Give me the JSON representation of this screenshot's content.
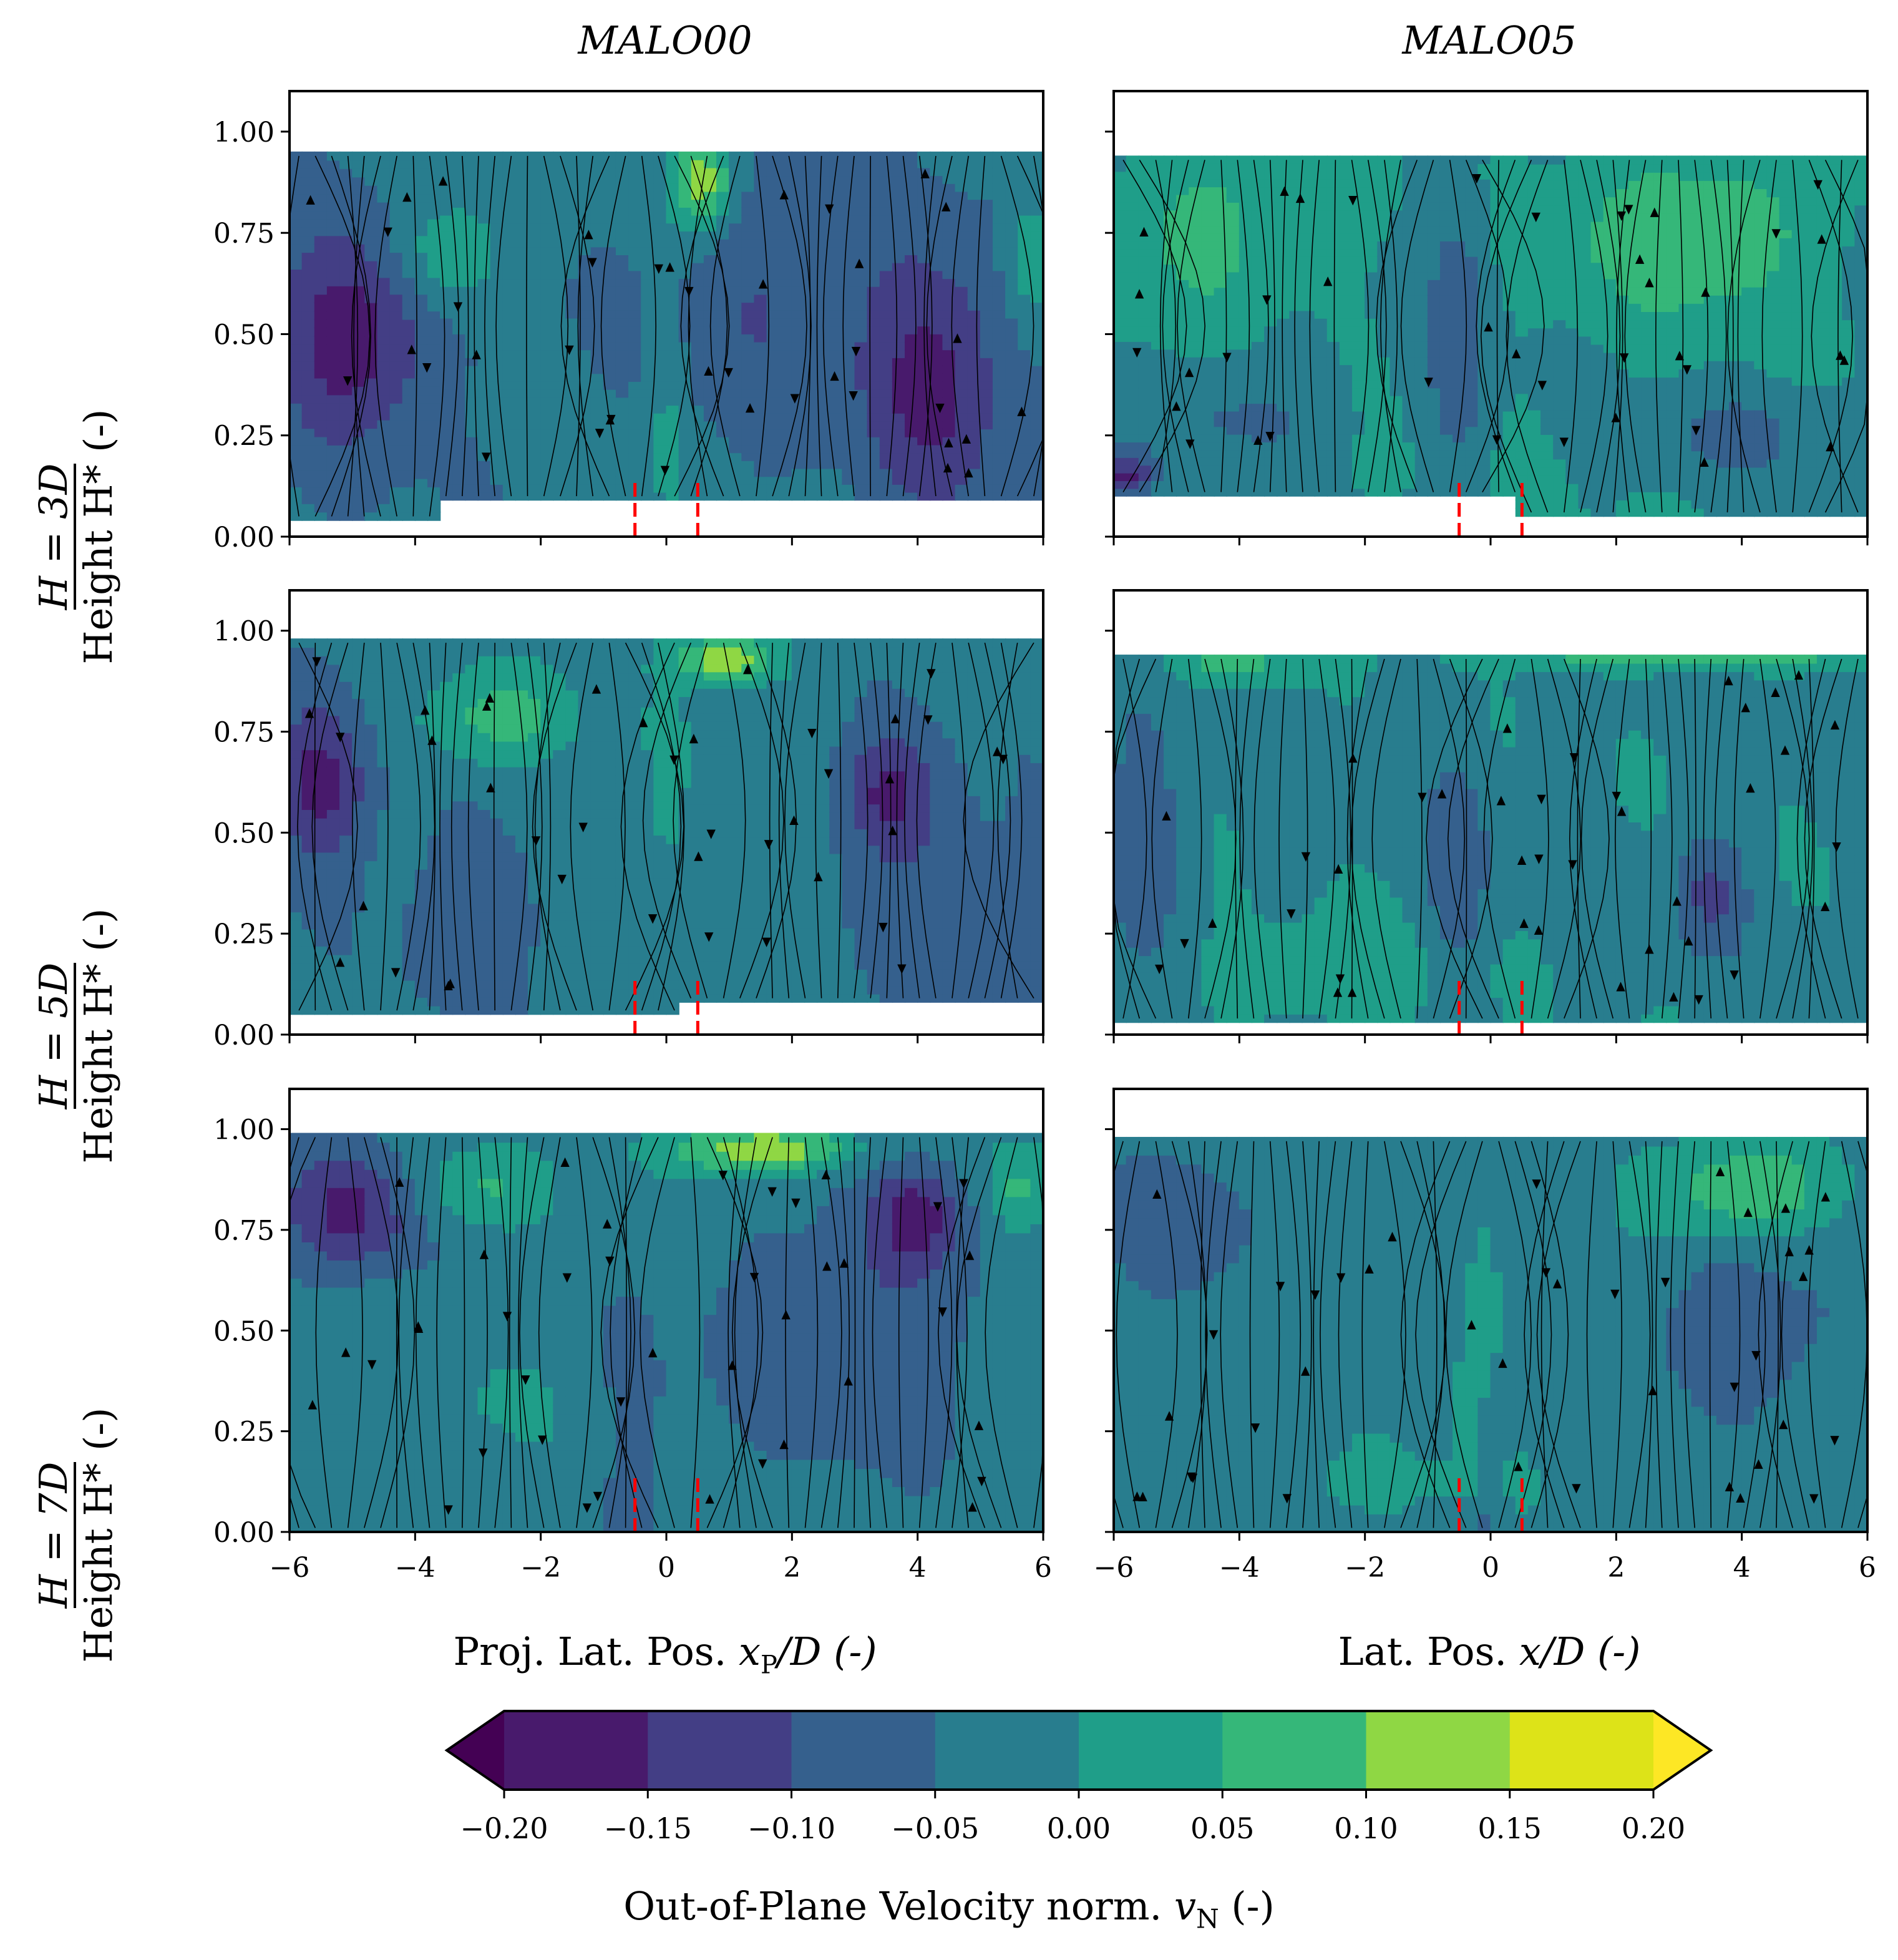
{
  "chart_data": {
    "type": "contour",
    "title": "",
    "columns": [
      {
        "title": "MALO00",
        "xlabel_pre": "Proj. Lat. Pos. ",
        "xlabel_var": "x",
        "xlabel_sub": "P",
        "xlabel_post": "/D (-)"
      },
      {
        "title": "MALO05",
        "xlabel_pre": "Lat. Pos. ",
        "xlabel_var": "x",
        "xlabel_sub": "",
        "xlabel_post": "/D (-)"
      }
    ],
    "rows": [
      {
        "label_top": "H = 3D",
        "label_bottom": "Height H* (-)"
      },
      {
        "label_top": "H = 5D",
        "label_bottom": "Height H* (-)"
      },
      {
        "label_top": "H = 7D",
        "label_bottom": "Height H* (-)"
      }
    ],
    "xlim": [
      -6,
      6
    ],
    "ylim": [
      0,
      1.1
    ],
    "xticks": [
      -6,
      -4,
      -2,
      0,
      2,
      4,
      6
    ],
    "xtick_labels": [
      "−6",
      "−4",
      "−2",
      "0",
      "2",
      "4",
      "6"
    ],
    "yticks": [
      0,
      0.25,
      0.5,
      0.75,
      1.0
    ],
    "ytick_labels": [
      "0.00",
      "0.25",
      "0.50",
      "0.75",
      "1.00"
    ],
    "rotor_lines_x": [
      -0.5,
      0.5
    ],
    "panels": [
      {
        "row": 0,
        "col": 0,
        "top": 0.95,
        "bottom_segments": [
          [
            -6,
            -3.6,
            0.04
          ],
          [
            -3.6,
            6,
            0.09
          ]
        ],
        "blobs": [
          [
            -5,
            0.5,
            1.2,
            0.25,
            -0.15
          ],
          [
            4.3,
            0.38,
            1.1,
            0.3,
            -0.13
          ],
          [
            -3.5,
            0.7,
            0.9,
            0.14,
            0.1
          ],
          [
            0.6,
            0.88,
            0.5,
            0.12,
            0.18
          ],
          [
            5.8,
            0.68,
            0.4,
            0.15,
            0.1
          ],
          [
            1.8,
            0.6,
            1.8,
            0.3,
            -0.06
          ],
          [
            0,
            0.3,
            0.3,
            0.4,
            0.05
          ]
        ],
        "base": -0.04
      },
      {
        "row": 0,
        "col": 1,
        "top": 0.94,
        "bottom_segments": [
          [
            -6,
            0.4,
            0.1
          ],
          [
            0.4,
            6,
            0.05
          ]
        ],
        "blobs": [
          [
            3.2,
            0.75,
            1.8,
            0.2,
            0.1
          ],
          [
            -4.5,
            0.75,
            1.4,
            0.2,
            0.07
          ],
          [
            -0.5,
            0.5,
            0.5,
            0.35,
            -0.09
          ],
          [
            -4,
            0.3,
            1.6,
            0.15,
            -0.06
          ],
          [
            4,
            0.25,
            1.6,
            0.12,
            -0.06
          ],
          [
            -5.8,
            0.15,
            0.4,
            0.06,
            -0.15
          ]
        ],
        "base": 0.0
      },
      {
        "row": 1,
        "col": 0,
        "top": 0.98,
        "bottom_segments": [
          [
            -6,
            0.3,
            0.05
          ],
          [
            0.3,
            6,
            0.08
          ]
        ],
        "blobs": [
          [
            -5.5,
            0.62,
            0.8,
            0.2,
            -0.14
          ],
          [
            3.5,
            0.6,
            0.8,
            0.15,
            -0.12
          ],
          [
            -2.7,
            0.78,
            1.3,
            0.12,
            0.1
          ],
          [
            1,
            0.93,
            0.8,
            0.06,
            0.18
          ],
          [
            -3,
            0.3,
            1.5,
            0.25,
            -0.05
          ],
          [
            4.5,
            0.3,
            1.5,
            0.3,
            -0.06
          ],
          [
            0,
            0.6,
            0.4,
            0.3,
            0.04
          ]
        ],
        "base": -0.03
      },
      {
        "row": 1,
        "col": 1,
        "top": 0.94,
        "bottom_segments": [
          [
            -6,
            6,
            0.03
          ]
        ],
        "blobs": [
          [
            -0.5,
            0.4,
            0.5,
            0.3,
            -0.08
          ],
          [
            -5.5,
            0.5,
            0.6,
            0.3,
            -0.08
          ],
          [
            3.5,
            0.35,
            0.6,
            0.15,
            -0.1
          ],
          [
            -2.5,
            0.15,
            2.0,
            0.12,
            0.05
          ],
          [
            3,
            0.95,
            2.5,
            0.04,
            0.15
          ],
          [
            -4,
            0.92,
            1.0,
            0.05,
            0.08
          ]
        ],
        "base": -0.01
      },
      {
        "row": 2,
        "col": 0,
        "top": 0.99,
        "bottom_segments": [
          [
            -6,
            6,
            0.0
          ]
        ],
        "blobs": [
          [
            -5,
            0.8,
            1.0,
            0.15,
            -0.14
          ],
          [
            4,
            0.78,
            0.7,
            0.12,
            -0.13
          ],
          [
            -3,
            0.85,
            1.2,
            0.1,
            0.08
          ],
          [
            1.5,
            0.95,
            1.5,
            0.06,
            0.18
          ],
          [
            5.6,
            0.85,
            0.5,
            0.12,
            0.1
          ],
          [
            -3,
            0.3,
            1.5,
            0.25,
            0.03
          ],
          [
            3,
            0.5,
            2.0,
            0.3,
            -0.07
          ],
          [
            -0.5,
            0.2,
            0.4,
            0.3,
            -0.06
          ]
        ],
        "base": -0.03
      },
      {
        "row": 2,
        "col": 1,
        "top": 0.98,
        "bottom_segments": [
          [
            -6,
            6,
            0.0
          ]
        ],
        "blobs": [
          [
            4,
            0.85,
            1.5,
            0.12,
            0.12
          ],
          [
            -5,
            0.75,
            1.0,
            0.2,
            -0.07
          ],
          [
            4,
            0.5,
            1.6,
            0.2,
            -0.07
          ],
          [
            -0.2,
            0.4,
            0.4,
            0.25,
            0.05
          ],
          [
            0,
            0.15,
            0.2,
            0.2,
            -0.08
          ],
          [
            -2,
            0.12,
            2.5,
            0.1,
            0.03
          ]
        ],
        "base": -0.02
      }
    ],
    "colorbar": {
      "label_pre": "Out-of-Plane Velocity norm. ",
      "label_var": "v",
      "label_sub": "N",
      "label_post": " (-)",
      "levels": [
        -0.2,
        -0.15,
        -0.1,
        -0.05,
        0.0,
        0.05,
        0.1,
        0.15,
        0.2
      ],
      "tick_labels": [
        "−0.20",
        "−0.15",
        "−0.10",
        "−0.05",
        "0.00",
        "0.05",
        "0.10",
        "0.15",
        "0.20"
      ],
      "colors": [
        "#440154",
        "#481a6c",
        "#433e85",
        "#35608d",
        "#287d8e",
        "#1f9e89",
        "#35b779",
        "#8fd744",
        "#dde318",
        "#fde725"
      ],
      "extend": "both"
    },
    "streamline_color": "#000000",
    "rotor_line_color": "#ff0000"
  }
}
